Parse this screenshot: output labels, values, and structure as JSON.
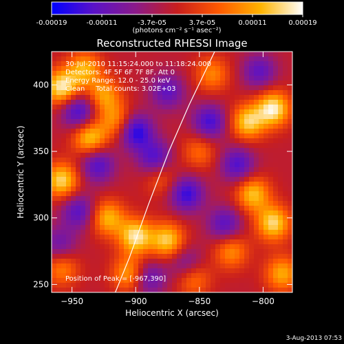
{
  "chart_data": {
    "type": "heatmap",
    "title": "Reconstructed RHESSI Image",
    "xlabel": "Heliocentric X (arcsec)",
    "ylabel": "Heliocentric Y (arcsec)",
    "xlim": [
      -966,
      -777
    ],
    "ylim": [
      244,
      425
    ],
    "x_ticks": [
      -950,
      -900,
      -850,
      -800
    ],
    "y_ticks": [
      250,
      300,
      350,
      400
    ],
    "grid": false,
    "colorbar": {
      "colormap": "blue-purple-red-yellow-white",
      "range": [
        -0.00019,
        0.00019
      ],
      "tick_labels": [
        "-0.00019",
        "-0.00011",
        "-3.7e-05",
        "3.7e-05",
        "0.00011",
        "0.00019"
      ],
      "unit_label": "(photons cm⁻² s⁻¹ asec⁻²)",
      "colors": [
        "#0000ff",
        "#5a12c8",
        "#8a1a8a",
        "#c81e1e",
        "#ff5a00",
        "#ffb400",
        "#ffffff"
      ]
    },
    "annotations": [
      "30-Jul-2010 11:15:24.000 to 11:18:24.000",
      "Detectors: 4F 5F 6F 7F 8F, Att 0",
      "Energy Range: 12.0 - 25.0 keV",
      "Clean     Total counts: 3.02E+03"
    ],
    "peak_label": "Position of Peak = [-967,390]",
    "peak_position": [
      -967,
      390
    ],
    "limb_curve": {
      "color": "#ffffff",
      "points": [
        [
          -916,
          244
        ],
        [
          -905,
          270
        ],
        [
          -890,
          310
        ],
        [
          -874,
          350
        ],
        [
          -858,
          385
        ],
        [
          -838,
          425
        ]
      ]
    },
    "hotspots": [
      {
        "x": -958,
        "y": 398,
        "v": 1.0
      },
      {
        "x": -940,
        "y": 412,
        "v": 0.7
      },
      {
        "x": -925,
        "y": 392,
        "v": 0.65
      },
      {
        "x": -936,
        "y": 360,
        "v": 0.85
      },
      {
        "x": -958,
        "y": 328,
        "v": 0.9
      },
      {
        "x": -915,
        "y": 373,
        "v": 0.6
      },
      {
        "x": -922,
        "y": 300,
        "v": 0.75
      },
      {
        "x": -900,
        "y": 286,
        "v": 0.95
      },
      {
        "x": -905,
        "y": 258,
        "v": 0.7
      },
      {
        "x": -958,
        "y": 262,
        "v": 0.55
      },
      {
        "x": -875,
        "y": 283,
        "v": 0.85
      },
      {
        "x": -855,
        "y": 255,
        "v": 0.6
      },
      {
        "x": -840,
        "y": 408,
        "v": 0.55
      },
      {
        "x": -812,
        "y": 372,
        "v": 0.85
      },
      {
        "x": -792,
        "y": 382,
        "v": 1.0
      },
      {
        "x": -808,
        "y": 318,
        "v": 0.8
      },
      {
        "x": -792,
        "y": 296,
        "v": 0.9
      },
      {
        "x": -825,
        "y": 275,
        "v": 0.6
      },
      {
        "x": -880,
        "y": 330,
        "v": 0.4
      },
      {
        "x": -850,
        "y": 350,
        "v": 0.45
      },
      {
        "x": -785,
        "y": 258,
        "v": 0.7
      }
    ],
    "coldspots": [
      {
        "x": -945,
        "y": 380,
        "v": -0.8
      },
      {
        "x": -930,
        "y": 340,
        "v": -0.7
      },
      {
        "x": -900,
        "y": 365,
        "v": -0.9
      },
      {
        "x": -875,
        "y": 395,
        "v": -0.6
      },
      {
        "x": -885,
        "y": 345,
        "v": -0.7
      },
      {
        "x": -860,
        "y": 318,
        "v": -0.8
      },
      {
        "x": -842,
        "y": 372,
        "v": -0.75
      },
      {
        "x": -820,
        "y": 340,
        "v": -0.7
      },
      {
        "x": -945,
        "y": 305,
        "v": -0.65
      },
      {
        "x": -890,
        "y": 255,
        "v": -0.6
      },
      {
        "x": -830,
        "y": 295,
        "v": -0.65
      },
      {
        "x": -803,
        "y": 410,
        "v": -0.6
      },
      {
        "x": -960,
        "y": 280,
        "v": -0.5
      },
      {
        "x": -860,
        "y": 265,
        "v": -0.55
      }
    ]
  },
  "footer": {
    "date": "3-Aug-2013 07:53"
  }
}
